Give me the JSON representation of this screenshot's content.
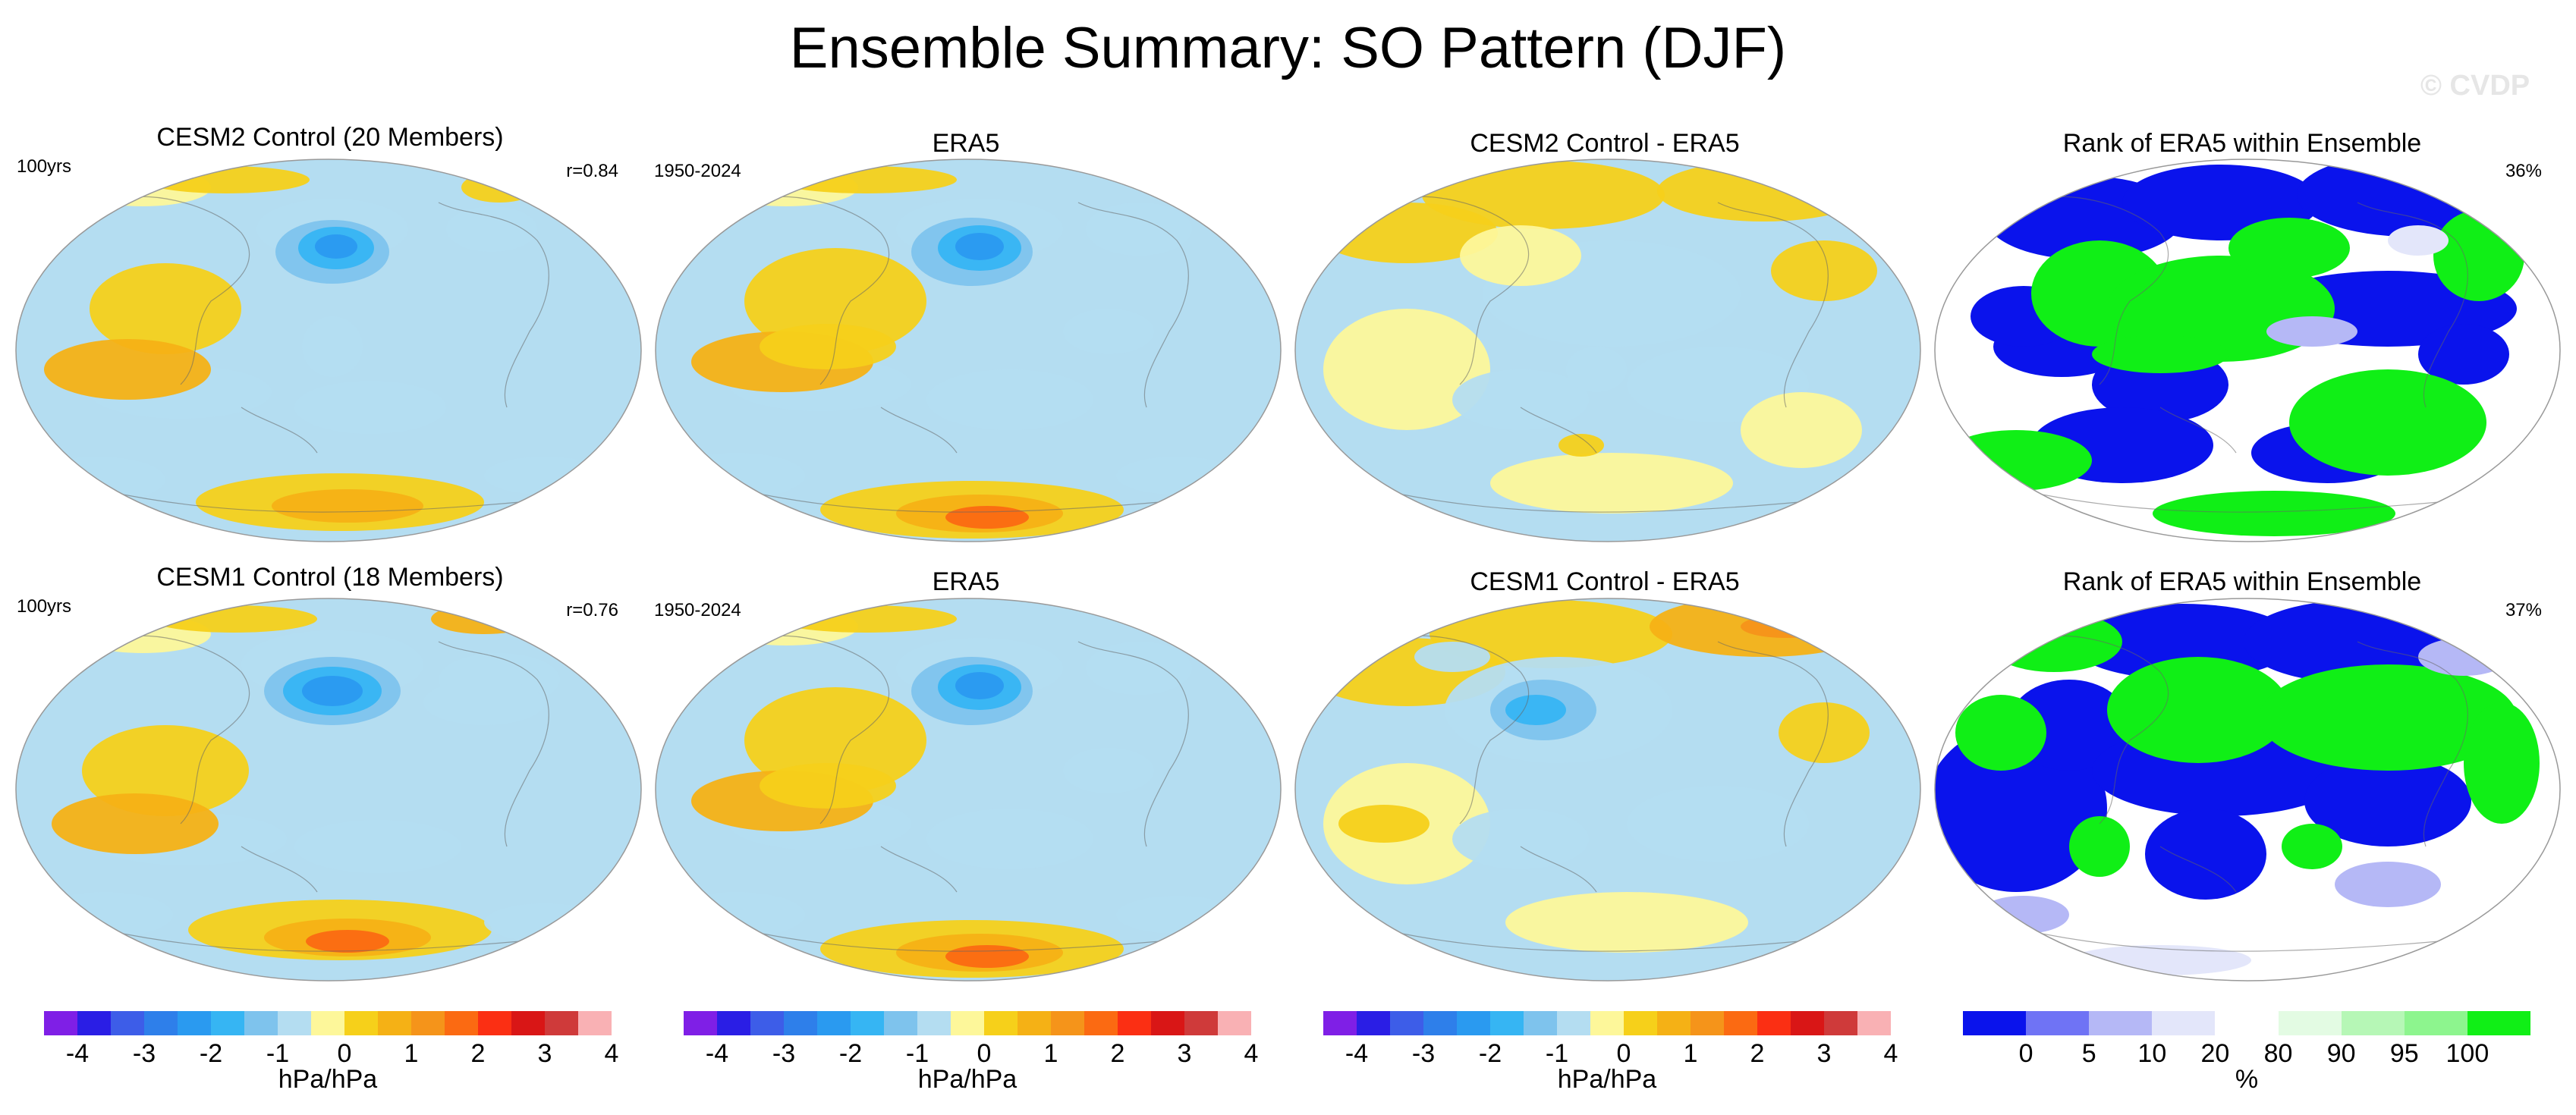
{
  "title": "Ensemble Summary: SO Pattern (DJF)",
  "watermark": "© CVDP",
  "colors": {
    "diverging": [
      "#7f1fe6",
      "#2a1ee5",
      "#3d5de8",
      "#2e7fea",
      "#2a9af0",
      "#36b5f3",
      "#7ec3ed",
      "#b4ddf1",
      "#fdf79a",
      "#f6d01a",
      "#f5b115",
      "#f5941a",
      "#fb6a12",
      "#fb2f13",
      "#d91616",
      "#cf3a3a",
      "#f9b1b4"
    ],
    "rank": [
      "#0a13ec",
      "#6f73f5",
      "#b5b8f6",
      "#e3e6fa",
      "#ffffff",
      "#e3fbe3",
      "#b6f7b6",
      "#8df58e",
      "#10ef16"
    ],
    "map_ocean_neg": "#b4ddf1",
    "map_pos": "#fdf79a"
  },
  "rows": [
    {
      "panels": [
        {
          "title": "CESM2 Control (20 Members)",
          "left": "100yrs",
          "right": "r=0.84"
        },
        {
          "title": "ERA5",
          "left": "1950-2024",
          "right": ""
        },
        {
          "title": "CESM2 Control - ERA5",
          "left": "",
          "right": ""
        },
        {
          "title": "Rank of ERA5 within Ensemble",
          "left": "",
          "right": "36%"
        }
      ]
    },
    {
      "panels": [
        {
          "title": "CESM1 Control (18 Members)",
          "left": "100yrs",
          "right": "r=0.76"
        },
        {
          "title": "ERA5",
          "left": "1950-2024",
          "right": ""
        },
        {
          "title": "CESM1 Control - ERA5",
          "left": "",
          "right": ""
        },
        {
          "title": "Rank of ERA5 within Ensemble",
          "left": "",
          "right": "37%"
        }
      ]
    }
  ],
  "chart_data": [
    {
      "type": "heatmap",
      "title": "CESM2 Control (20 Members)",
      "annotation_left": "100yrs",
      "annotation_right": "r=0.84",
      "projection": "robinson",
      "variable": "SO pattern DJF",
      "units": "hPa/hPa",
      "contour_levels": [
        -4,
        -3.5,
        -3,
        -2.5,
        -2,
        -1.5,
        -1,
        -0.5,
        0,
        0.5,
        1,
        1.5,
        2,
        2.5,
        3,
        3.5,
        4
      ]
    },
    {
      "type": "heatmap",
      "title": "ERA5",
      "annotation_left": "1950-2024",
      "projection": "robinson",
      "units": "hPa/hPa"
    },
    {
      "type": "heatmap",
      "title": "CESM2 Control - ERA5",
      "projection": "robinson",
      "units": "hPa/hPa"
    },
    {
      "type": "heatmap",
      "title": "Rank of ERA5 within Ensemble",
      "annotation_right": "36%",
      "projection": "robinson",
      "units": "%",
      "levels": [
        0,
        5,
        10,
        20,
        80,
        90,
        95,
        100
      ]
    },
    {
      "type": "heatmap",
      "title": "CESM1 Control (18 Members)",
      "annotation_left": "100yrs",
      "annotation_right": "r=0.76",
      "projection": "robinson",
      "units": "hPa/hPa"
    },
    {
      "type": "heatmap",
      "title": "ERA5",
      "annotation_left": "1950-2024",
      "projection": "robinson",
      "units": "hPa/hPa"
    },
    {
      "type": "heatmap",
      "title": "CESM1 Control - ERA5",
      "projection": "robinson",
      "units": "hPa/hPa"
    },
    {
      "type": "heatmap",
      "title": "Rank of ERA5 within Ensemble",
      "annotation_right": "37%",
      "projection": "robinson",
      "units": "%"
    }
  ],
  "colorbars": {
    "diverging": {
      "ticks": [
        "-4",
        "-3",
        "-2",
        "-1",
        "0",
        "1",
        "2",
        "3",
        "4"
      ],
      "label": "hPa/hPa"
    },
    "rank": {
      "ticks": [
        "0",
        "5",
        "10",
        "20",
        "80",
        "90",
        "95",
        "100"
      ],
      "label": "%"
    }
  }
}
